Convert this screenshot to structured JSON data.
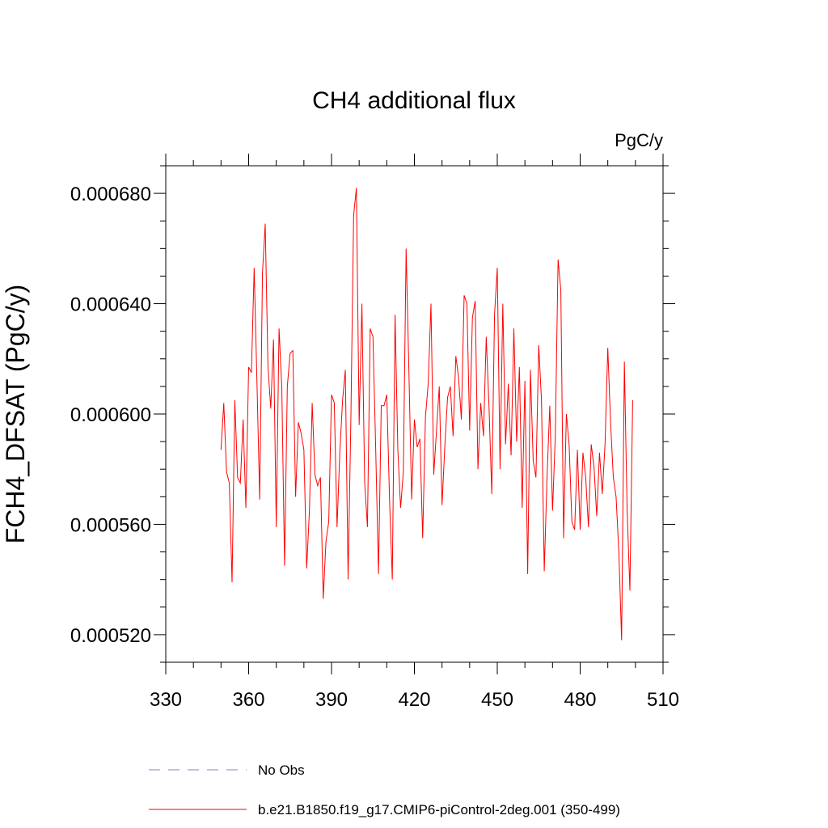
{
  "chart_data": {
    "type": "line",
    "title": "CH4 additional flux",
    "units_label": "PgC/y",
    "xlabel": "",
    "ylabel": "FCH4_DFSAT  (PgC/y)",
    "xlim": [
      330,
      510
    ],
    "ylim": [
      0.00051,
      0.00069
    ],
    "x_major_ticks": [
      330,
      360,
      390,
      420,
      450,
      480,
      510
    ],
    "x_tick_labels": [
      "330",
      "360",
      "390",
      "420",
      "450",
      "480",
      "510"
    ],
    "y_major_ticks": [
      0.00052,
      0.00056,
      0.0006,
      0.00064,
      0.00068
    ],
    "y_tick_labels": [
      "0.000520",
      "0.000560",
      "0.000600",
      "0.000640",
      "0.000680"
    ],
    "y_minor_step": 1e-05,
    "x_minor_step": 10,
    "grid": false,
    "legend_position": "bottom",
    "series": [
      {
        "name": "b.e21.B1850.f19_g17.CMIP6-piControl-2deg.001 (350-499)",
        "color": "#ff0000",
        "dash": "solid",
        "x_start": 350,
        "x_step": 1,
        "values": [
          0.000587,
          0.000604,
          0.000579,
          0.000575,
          0.000539,
          0.000605,
          0.000577,
          0.000575,
          0.000598,
          0.000566,
          0.000617,
          0.000615,
          0.000653,
          0.000612,
          0.000569,
          0.000651,
          0.000669,
          0.000617,
          0.000602,
          0.000627,
          0.000559,
          0.000631,
          0.00061,
          0.000545,
          0.00061,
          0.000622,
          0.000623,
          0.00057,
          0.000597,
          0.000593,
          0.000587,
          0.000544,
          0.000565,
          0.000604,
          0.000578,
          0.000574,
          0.000577,
          0.000533,
          0.000554,
          0.000561,
          0.000607,
          0.000604,
          0.000559,
          0.000586,
          0.000605,
          0.000616,
          0.00054,
          0.000598,
          0.000672,
          0.000682,
          0.000596,
          0.00064,
          0.000575,
          0.000559,
          0.000631,
          0.000628,
          0.000587,
          0.000542,
          0.000603,
          0.000603,
          0.000607,
          0.000569,
          0.00054,
          0.000636,
          0.000587,
          0.000566,
          0.000579,
          0.00066,
          0.000616,
          0.000569,
          0.000598,
          0.000588,
          0.000591,
          0.000555,
          0.000599,
          0.000611,
          0.00064,
          0.000578,
          0.000594,
          0.00061,
          0.000567,
          0.000588,
          0.000606,
          0.00061,
          0.000592,
          0.000621,
          0.000613,
          0.000598,
          0.000643,
          0.00064,
          0.000594,
          0.000635,
          0.000641,
          0.00058,
          0.000604,
          0.000592,
          0.000628,
          0.000603,
          0.000571,
          0.000636,
          0.000653,
          0.00058,
          0.00064,
          0.000589,
          0.000611,
          0.000585,
          0.000631,
          0.00059,
          0.000617,
          0.000566,
          0.000612,
          0.000542,
          0.000616,
          0.000583,
          0.000577,
          0.000625,
          0.000605,
          0.000543,
          0.000577,
          0.000603,
          0.000565,
          0.000592,
          0.000656,
          0.000645,
          0.000555,
          0.0006,
          0.000589,
          0.000561,
          0.000558,
          0.000587,
          0.000558,
          0.000586,
          0.000577,
          0.000559,
          0.000589,
          0.000581,
          0.000563,
          0.000586,
          0.000571,
          0.000589,
          0.000624,
          0.000597,
          0.000577,
          0.00057,
          0.00055,
          0.000518,
          0.000619,
          0.000565,
          0.000536,
          0.000605
        ]
      }
    ],
    "legend": [
      {
        "label": "No Obs",
        "color": "#8080c0",
        "dash": "dashed"
      },
      {
        "label": "b.e21.B1850.f19_g17.CMIP6-piControl-2deg.001 (350-499)",
        "color": "#ff0000",
        "dash": "solid"
      }
    ]
  }
}
